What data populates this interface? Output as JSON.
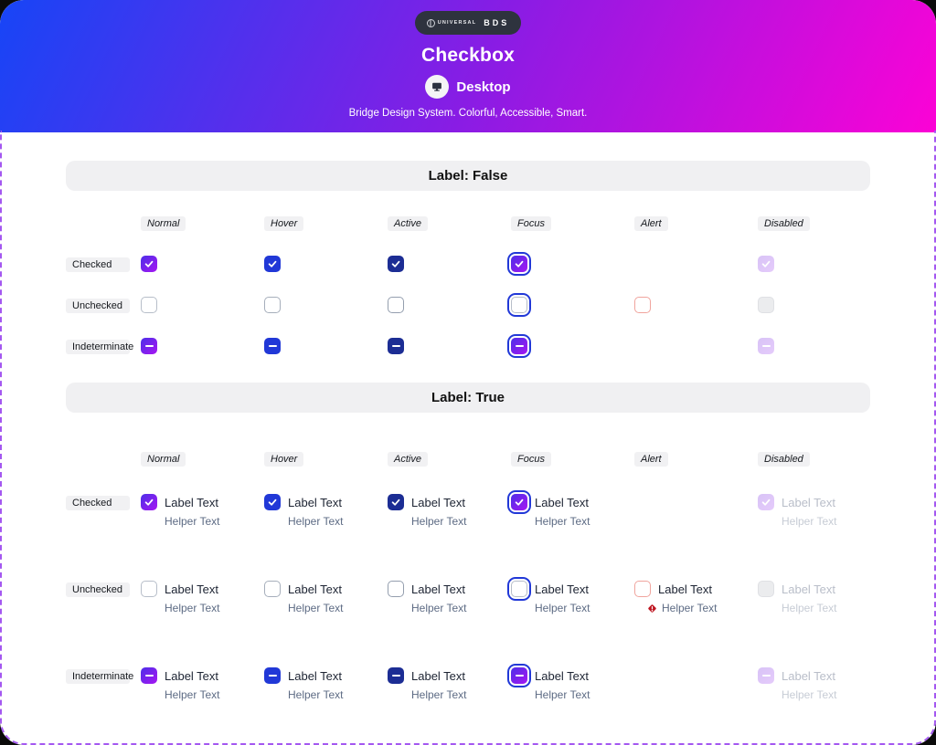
{
  "header": {
    "badge_brand": "UNIVERSAL",
    "badge_suffix": "BDS",
    "title": "Checkbox",
    "platform": "Desktop",
    "tagline": "Bridge Design System. Colorful, Accessible, Smart."
  },
  "sections": [
    {
      "id": "label-false",
      "title": "Label: False",
      "with_label": false
    },
    {
      "id": "label-true",
      "title": "Label: True",
      "with_label": true
    }
  ],
  "columns": [
    {
      "id": "normal",
      "label": "Normal"
    },
    {
      "id": "hover",
      "label": "Hover"
    },
    {
      "id": "active",
      "label": "Active"
    },
    {
      "id": "focus",
      "label": "Focus"
    },
    {
      "id": "alert",
      "label": "Alert"
    },
    {
      "id": "disabled",
      "label": "Disabled"
    }
  ],
  "rows": [
    {
      "id": "checked",
      "label": "Checked"
    },
    {
      "id": "unchecked",
      "label": "Unchecked"
    },
    {
      "id": "indeterminate",
      "label": "Indeterminate"
    }
  ],
  "empty_cells": [
    [
      "checked",
      "alert"
    ],
    [
      "indeterminate",
      "alert"
    ]
  ],
  "cell_text": {
    "label": "Label Text",
    "helper": "Helper Text"
  },
  "colors": {
    "header_grad_a": "#1745f6",
    "header_grad_mid": "#8a1ce4",
    "header_grad_b": "#fc02d6",
    "page_border": "#a458f0",
    "cb_grad_a": "#4b2fe8",
    "cb_grad_b": "#a816f2",
    "hover_fill": "#2138d7",
    "active_fill": "#1c2d94",
    "focus_ring": "#2138d7",
    "alert_border": "#f0a49d",
    "alert_icon": "#bf1722",
    "disabled_grad_a": "#d8c3f6",
    "disabled_grad_b": "#e5cbfb",
    "unchecked_border": "#b7bec9",
    "unchecked_hover_border": "#a6aebb",
    "unchecked_active_border": "#949eae",
    "disabled_unchecked_bg": "#ebecee",
    "disabled_unchecked_border": "#dfe0e4",
    "label_color": "#1d2433",
    "helper_color": "#5d6b84",
    "disabled_label": "#b9bec9",
    "disabled_helper": "#c7ccd5"
  }
}
